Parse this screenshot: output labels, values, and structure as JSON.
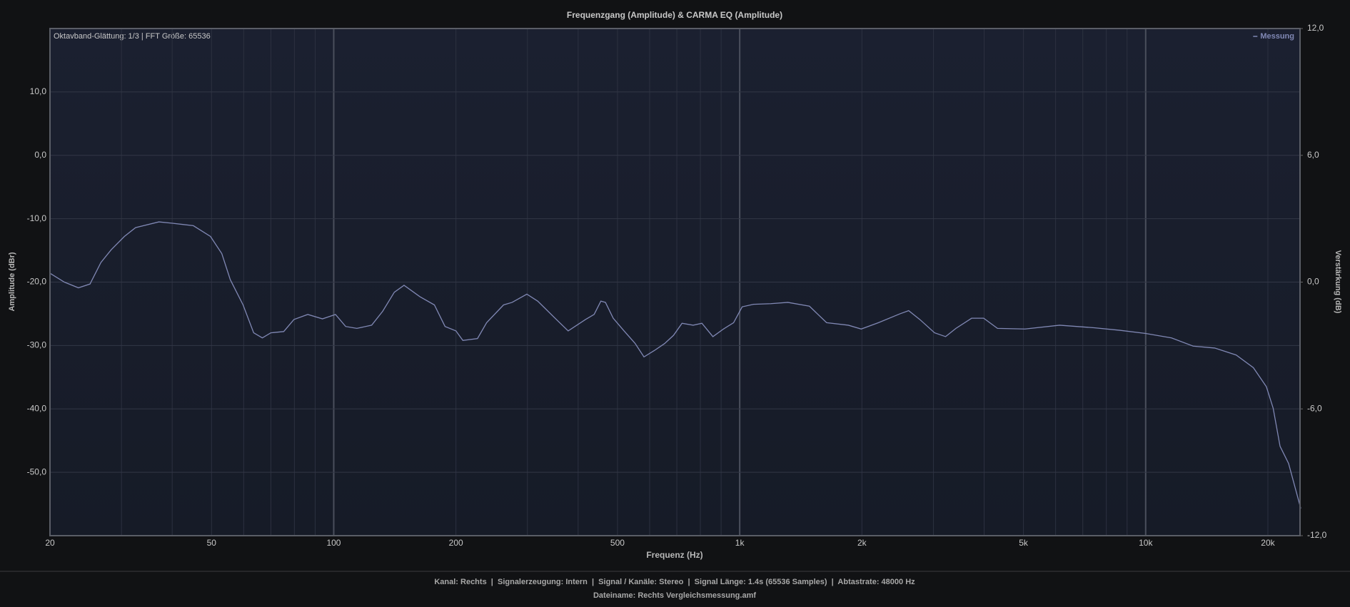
{
  "chart_data": {
    "type": "line",
    "title": "Frequenzgang (Amplitude) & CARMA EQ (Amplitude)",
    "annotation": "Oktavband-Glättung: 1/3 | FFT Größe: 65536",
    "xlabel": "Frequenz (Hz)",
    "ylabel": "Amplitude (dBr)",
    "y2label": "Verstärkung (dB)",
    "xscale": "log",
    "xlim": [
      20,
      24000
    ],
    "ylim": [
      -60,
      20
    ],
    "y2lim": [
      -12,
      12
    ],
    "xticks": [
      20,
      50,
      100,
      200,
      500,
      {
        "value": 1000,
        "label": "1k"
      },
      {
        "value": 2000,
        "label": "2k"
      },
      {
        "value": 5000,
        "label": "5k"
      },
      {
        "value": 10000,
        "label": "10k"
      },
      {
        "value": 20000,
        "label": "20k"
      }
    ],
    "xminorticks": [
      30,
      40,
      60,
      70,
      80,
      90,
      300,
      400,
      600,
      700,
      800,
      900,
      3000,
      4000,
      6000,
      7000,
      8000,
      9000
    ],
    "yticks": [
      {
        "value": -50,
        "label": "-50,0"
      },
      {
        "value": -40,
        "label": "-40,0"
      },
      {
        "value": -30,
        "label": "-30,0"
      },
      {
        "value": -20,
        "label": "-20,0"
      },
      {
        "value": -10,
        "label": "-10,0"
      },
      {
        "value": 0,
        "label": "0,0"
      },
      {
        "value": 10,
        "label": "10,0"
      }
    ],
    "y2ticks": [
      {
        "value": -12,
        "label": "-12,0"
      },
      {
        "value": -6,
        "label": "-6,0"
      },
      {
        "value": 0,
        "label": "0,0"
      },
      {
        "value": 6,
        "label": "6,0"
      },
      {
        "value": 12,
        "label": "12,0"
      }
    ],
    "grid": true,
    "legend": "top-right",
    "x": [
      20,
      21.7,
      23.5,
      25.1,
      26.7,
      28.3,
      30.5,
      32.5,
      37.1,
      39.9,
      45.1,
      49.7,
      53.0,
      55.6,
      59.8,
      63.5,
      66.7,
      70.0,
      75.3,
      79.8,
      86.3,
      93.8,
      101,
      107,
      114,
      124,
      132,
      141,
      149,
      163,
      177,
      188,
      200,
      208,
      226,
      238,
      262,
      275,
      299,
      318,
      351,
      378,
      417,
      438,
      455,
      467,
      488,
      519,
      553,
      581,
      616,
      653,
      687,
      721,
      768,
      807,
      859,
      912,
      966,
      1014,
      1081,
      1192,
      1314,
      1485,
      1637,
      1852,
      1992,
      2197,
      2482,
      2607,
      2778,
      3020,
      3215,
      3409,
      3726,
      3990,
      4315,
      5045,
      6135,
      7460,
      8635,
      10000,
      11580,
      13090,
      14790,
      16710,
      18420,
      19830,
      20610,
      21430,
      22490,
      24100
    ],
    "series": [
      {
        "name": "Messung",
        "color": "#8088b4",
        "values": [
          -18.6,
          -20.0,
          -20.9,
          -20.3,
          -16.9,
          -14.9,
          -12.8,
          -11.4,
          -10.5,
          -10.7,
          -11.1,
          -12.8,
          -15.5,
          -19.6,
          -23.6,
          -28.0,
          -28.8,
          -28.0,
          -27.8,
          -25.9,
          -25.1,
          -25.8,
          -25.1,
          -27.0,
          -27.3,
          -26.8,
          -24.6,
          -21.6,
          -20.5,
          -22.3,
          -23.6,
          -27.0,
          -27.7,
          -29.2,
          -28.9,
          -26.4,
          -23.6,
          -23.2,
          -21.9,
          -23.0,
          -25.7,
          -27.7,
          -25.9,
          -25.1,
          -23.0,
          -23.2,
          -25.7,
          -27.7,
          -29.7,
          -31.8,
          -30.8,
          -29.7,
          -28.4,
          -26.5,
          -26.8,
          -26.5,
          -28.6,
          -27.4,
          -26.4,
          -23.9,
          -23.5,
          -23.4,
          -23.2,
          -23.8,
          -26.4,
          -26.8,
          -27.4,
          -26.4,
          -25.0,
          -24.5,
          -25.9,
          -28.0,
          -28.6,
          -27.3,
          -25.7,
          -25.7,
          -27.3,
          -27.4,
          -26.8,
          -27.2,
          -27.6,
          -28.1,
          -28.8,
          -30.1,
          -30.4,
          -31.5,
          -33.5,
          -36.5,
          -39.9,
          -45.9,
          -48.6,
          -55.7
        ]
      }
    ]
  },
  "footer": [
    "Kanal: Rechts  |  Signalerzeugung: Intern  |  Signal / Kanäle: Stereo  |  Signal Länge: 1.4s (65536 Samples)  |  Abtastrate: 48000 Hz",
    "Dateiname: Rechts Vergleichsmessung.amf"
  ]
}
